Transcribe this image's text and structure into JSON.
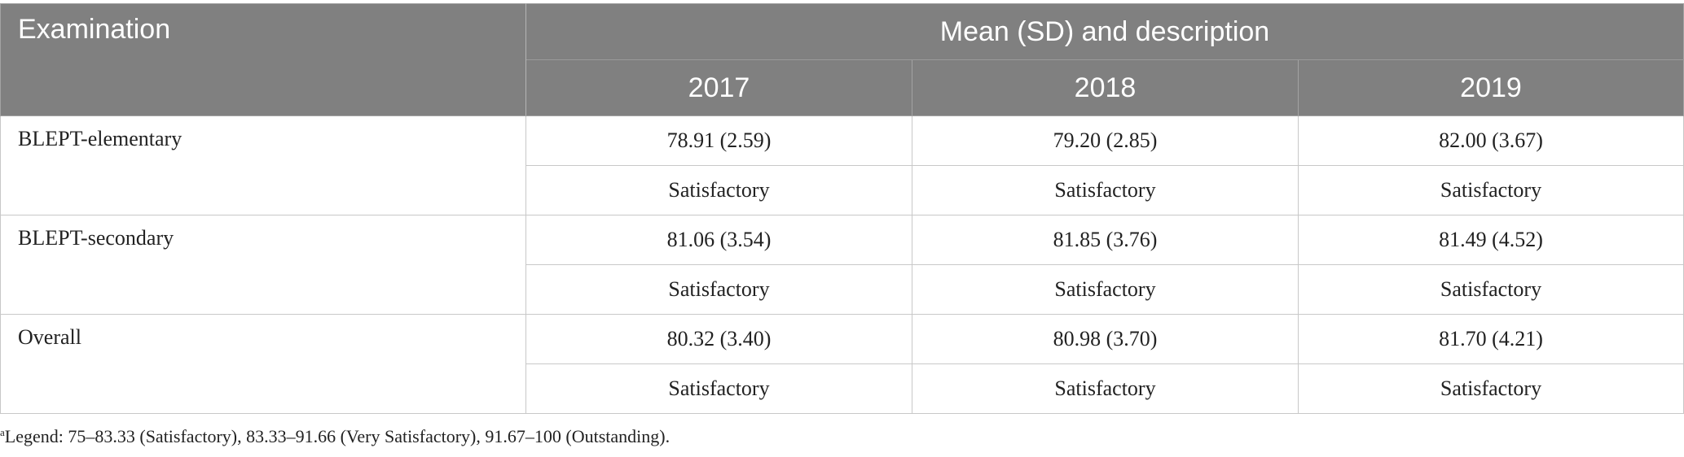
{
  "table": {
    "header": {
      "examination": "Examination",
      "group": "Mean (SD) and description",
      "years": [
        "2017",
        "2018",
        "2019"
      ]
    },
    "rows": [
      {
        "label": "BLEPT-elementary",
        "means": [
          "78.91 (2.59)",
          "79.20 (2.85)",
          "82.00 (3.67)"
        ],
        "descriptions": [
          "Satisfactory",
          "Satisfactory",
          "Satisfactory"
        ]
      },
      {
        "label": "BLEPT-secondary",
        "means": [
          "81.06 (3.54)",
          "81.85 (3.76)",
          "81.49 (4.52)"
        ],
        "descriptions": [
          "Satisfactory",
          "Satisfactory",
          "Satisfactory"
        ]
      },
      {
        "label": "Overall",
        "means": [
          "80.32 (3.40)",
          "80.98 (3.70)",
          "81.70 (4.21)"
        ],
        "descriptions": [
          "Satisfactory",
          "Satisfactory",
          "Satisfactory"
        ]
      }
    ]
  },
  "footnote": {
    "marker": "a",
    "text": "Legend: 75–83.33 (Satisfactory), 83.33–91.66 (Very Satisfactory), 91.67–100 (Outstanding)."
  }
}
